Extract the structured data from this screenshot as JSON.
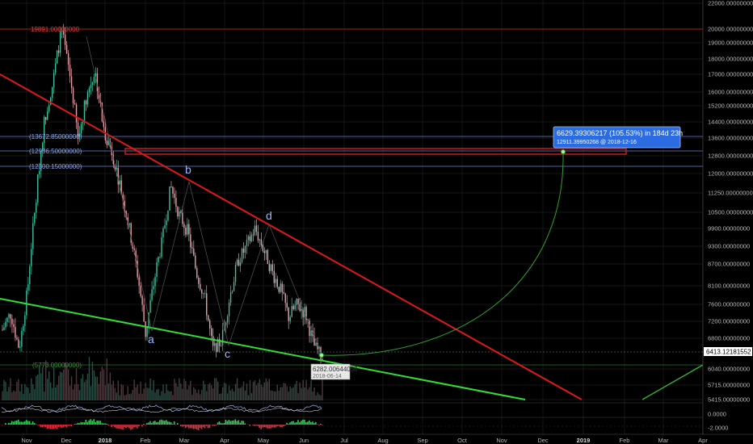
{
  "chart_data": {
    "type": "candlestick",
    "y_axis_labels": [
      "22000.00000000",
      "20000.00000000",
      "19000.00000000",
      "18000.00000000",
      "17000.00000000",
      "16000.00000000",
      "15200.00000000",
      "14400.00000000",
      "13600.00000000",
      "12800.00000000",
      "12000.00000000",
      "11250.00000000",
      "10500.00000000",
      "9900.00000000",
      "9300.00000000",
      "8700.00000000",
      "8100.00000000",
      "7600.00000000",
      "7200.00000000",
      "6800.00000000",
      "6413.12181552",
      "6040.00000000",
      "5715.00000000",
      "5415.00000000",
      "0.0000",
      "-2.0000"
    ],
    "x_axis_labels": [
      {
        "label": "Nov",
        "bold": false
      },
      {
        "label": "Dec",
        "bold": false
      },
      {
        "label": "2018",
        "bold": true
      },
      {
        "label": "Feb",
        "bold": false
      },
      {
        "label": "Mar",
        "bold": false
      },
      {
        "label": "Apr",
        "bold": false
      },
      {
        "label": "May",
        "bold": false
      },
      {
        "label": "Jun",
        "bold": false
      },
      {
        "label": "Jul",
        "bold": false
      },
      {
        "label": "Aug",
        "bold": false
      },
      {
        "label": "Sep",
        "bold": false
      },
      {
        "label": "Oct",
        "bold": false
      },
      {
        "label": "Nov",
        "bold": false
      },
      {
        "label": "Dec",
        "bold": false
      },
      {
        "label": "2019",
        "bold": true
      },
      {
        "label": "Feb",
        "bold": false
      },
      {
        "label": "Mar",
        "bold": false
      },
      {
        "label": "Apr",
        "bold": false
      }
    ],
    "levels": {
      "top": "19891.00000000",
      "upper1": "(13672.85000000)",
      "upper2": "(12986.50000000)",
      "upper3": "(12300.15000000)",
      "bottom": "(5773.00000000)"
    },
    "wave_labels": [
      "a",
      "b",
      "c",
      "d"
    ],
    "price_points": [
      7000,
      7400,
      6500,
      8000,
      11000,
      14500,
      16500,
      19891,
      17000,
      13500,
      15800,
      17200,
      14000,
      13000,
      11500,
      10000,
      8500,
      6900,
      8200,
      9500,
      11500,
      10400,
      9800,
      8500,
      7800,
      6500,
      6700,
      7800,
      8800,
      9300,
      9900,
      9200,
      8500,
      8000,
      7300,
      7600,
      7400,
      6600,
      6282
    ],
    "current_price": "6413.12181552",
    "low_callout": {
      "price": "6282.00644058",
      "date": "2018-06-14"
    },
    "projection_callout": {
      "line1": "6629.39306217 (105.53%) in 184d 23h",
      "line2": "12911.39950268  @ 2018-12-16"
    },
    "colors": {
      "up": "#3fc1a0",
      "down": "#e6a0a8",
      "red_line": "#e01818",
      "green_line": "#33dd33",
      "blue_level": "#6b86d6",
      "callout_bg": "#2b6ce0"
    }
  }
}
